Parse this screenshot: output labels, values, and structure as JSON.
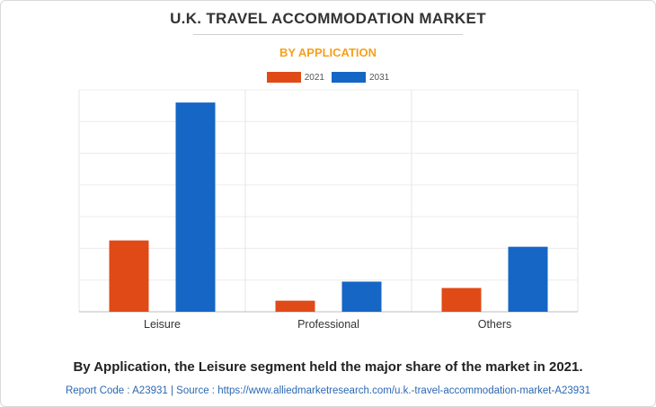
{
  "header": {
    "title": "U.K. TRAVEL ACCOMMODATION MARKET",
    "subtitle": "BY APPLICATION"
  },
  "colors": {
    "series_2021": "#e04a17",
    "series_2031": "#1566c5",
    "subtitle": "#f7a01d"
  },
  "chart_data": {
    "type": "bar",
    "categories": [
      "Leisure",
      "Professional",
      "Others"
    ],
    "series": [
      {
        "name": "2021",
        "color": "#e04a17",
        "values": [
          22.5,
          3.5,
          7.5
        ]
      },
      {
        "name": "2031",
        "color": "#1566c5",
        "values": [
          66.0,
          9.5,
          20.5
        ]
      }
    ],
    "ylim": [
      0,
      70
    ],
    "grid": true,
    "legend_position": "top-center",
    "xlabel": "",
    "ylabel": ""
  },
  "caption": "By Application, the Leisure segment held the major share of the market in 2021.",
  "footer": "Report Code : A23931   |   Source : https://www.alliedmarketresearch.com/u.k.-travel-accommodation-market-A23931"
}
